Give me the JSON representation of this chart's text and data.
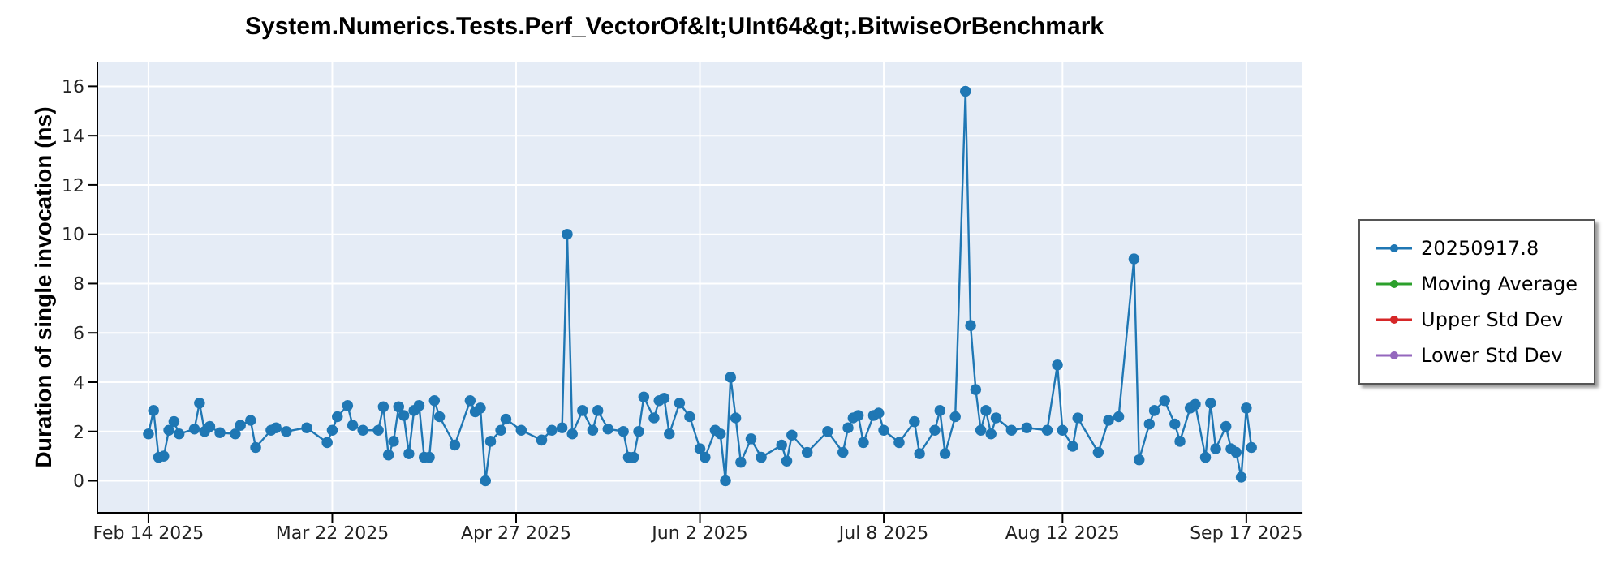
{
  "chart_data": {
    "type": "line",
    "title": "System.Numerics.Tests.Perf_VectorOf&lt;UInt64&gt;.BitwiseOrBenchmark",
    "ylabel": "Duration of single invocation (ns)",
    "x": [
      "2025-02-14",
      "2025-02-15",
      "2025-02-16",
      "2025-02-17",
      "2025-02-18",
      "2025-02-19",
      "2025-02-20",
      "2025-02-23",
      "2025-02-24",
      "2025-02-25",
      "2025-02-26",
      "2025-02-28",
      "2025-03-03",
      "2025-03-04",
      "2025-03-06",
      "2025-03-07",
      "2025-03-10",
      "2025-03-11",
      "2025-03-13",
      "2025-03-17",
      "2025-03-21",
      "2025-03-22",
      "2025-03-23",
      "2025-03-25",
      "2025-03-26",
      "2025-03-28",
      "2025-03-31",
      "2025-04-01",
      "2025-04-02",
      "2025-04-03",
      "2025-04-04",
      "2025-04-05",
      "2025-04-06",
      "2025-04-07",
      "2025-04-08",
      "2025-04-09",
      "2025-04-10",
      "2025-04-11",
      "2025-04-12",
      "2025-04-15",
      "2025-04-18",
      "2025-04-19",
      "2025-04-20",
      "2025-04-21",
      "2025-04-22",
      "2025-04-24",
      "2025-04-25",
      "2025-04-28",
      "2025-05-02",
      "2025-05-04",
      "2025-05-06",
      "2025-05-07",
      "2025-05-08",
      "2025-05-10",
      "2025-05-12",
      "2025-05-13",
      "2025-05-15",
      "2025-05-18",
      "2025-05-19",
      "2025-05-20",
      "2025-05-21",
      "2025-05-22",
      "2025-05-24",
      "2025-05-25",
      "2025-05-26",
      "2025-05-27",
      "2025-05-29",
      "2025-05-31",
      "2025-06-02",
      "2025-06-03",
      "2025-06-05",
      "2025-06-06",
      "2025-06-07",
      "2025-06-08",
      "2025-06-09",
      "2025-06-10",
      "2025-06-12",
      "2025-06-14",
      "2025-06-18",
      "2025-06-19",
      "2025-06-20",
      "2025-06-23",
      "2025-06-27",
      "2025-06-30",
      "2025-07-01",
      "2025-07-02",
      "2025-07-03",
      "2025-07-04",
      "2025-07-06",
      "2025-07-07",
      "2025-07-08",
      "2025-07-11",
      "2025-07-14",
      "2025-07-15",
      "2025-07-18",
      "2025-07-19",
      "2025-07-20",
      "2025-07-22",
      "2025-07-24",
      "2025-07-25",
      "2025-07-26",
      "2025-07-27",
      "2025-07-28",
      "2025-07-29",
      "2025-07-30",
      "2025-08-02",
      "2025-08-05",
      "2025-08-09",
      "2025-08-11",
      "2025-08-12",
      "2025-08-14",
      "2025-08-15",
      "2025-08-19",
      "2025-08-21",
      "2025-08-23",
      "2025-08-26",
      "2025-08-27",
      "2025-08-29",
      "2025-08-30",
      "2025-09-01",
      "2025-09-03",
      "2025-09-04",
      "2025-09-06",
      "2025-09-07",
      "2025-09-09",
      "2025-09-10",
      "2025-09-11",
      "2025-09-13",
      "2025-09-14",
      "2025-09-15",
      "2025-09-16",
      "2025-09-17",
      "2025-09-18"
    ],
    "series": [
      {
        "name": "20250917.8",
        "color": "#1f77b4",
        "values": [
          1.9,
          2.85,
          0.95,
          1.0,
          2.05,
          2.4,
          1.9,
          2.1,
          3.15,
          2.0,
          2.2,
          1.95,
          1.9,
          2.25,
          2.45,
          1.35,
          2.05,
          2.15,
          2.0,
          2.15,
          1.55,
          2.05,
          2.6,
          3.05,
          2.25,
          2.05,
          2.05,
          3.0,
          1.05,
          1.6,
          3.0,
          2.65,
          1.1,
          2.85,
          3.05,
          0.95,
          0.95,
          3.25,
          2.6,
          1.45,
          3.25,
          2.8,
          2.95,
          0,
          1.6,
          2.05,
          2.5,
          2.05,
          1.65,
          2.05,
          2.15,
          10.0,
          1.9,
          2.85,
          2.05,
          2.85,
          2.1,
          2.0,
          0.95,
          0.95,
          2.0,
          3.4,
          2.55,
          3.25,
          3.35,
          1.9,
          3.15,
          2.6,
          1.3,
          0.95,
          2.05,
          1.9,
          0,
          4.2,
          2.55,
          0.75,
          1.7,
          0.95,
          1.45,
          0.8,
          1.85,
          1.15,
          2.0,
          1.15,
          2.15,
          2.55,
          2.65,
          1.55,
          2.65,
          2.75,
          2.05,
          1.55,
          2.4,
          1.1,
          2.05,
          2.85,
          1.1,
          2.6,
          15.8,
          6.3,
          3.7,
          2.05,
          2.85,
          1.9,
          2.55,
          2.05,
          2.15,
          2.05,
          4.7,
          2.05,
          1.4,
          2.55,
          1.15,
          2.45,
          2.6,
          9.0,
          0.85,
          2.3,
          2.85,
          3.25,
          2.3,
          1.6,
          2.95,
          3.1,
          0.95,
          3.15,
          1.3,
          2.2,
          1.3,
          1.15,
          0.15,
          2.95,
          1.35
        ]
      },
      {
        "name": "Moving Average",
        "color": "#2ca02c",
        "values": [
          null,
          null,
          null,
          null,
          null,
          null,
          null,
          null,
          null,
          null,
          null,
          null,
          null,
          null,
          null,
          null,
          null,
          null,
          null,
          null,
          null,
          null,
          null,
          null,
          null,
          null,
          null,
          null,
          null,
          null,
          null,
          null,
          null,
          null,
          null,
          null,
          null,
          null,
          null,
          null,
          null,
          null,
          null,
          null,
          null,
          null,
          null,
          null,
          null,
          null,
          null,
          null,
          null,
          null,
          null,
          null,
          null,
          null,
          null,
          null,
          null,
          null,
          null,
          null,
          null,
          null,
          null,
          null,
          null,
          null,
          null,
          null,
          null,
          null,
          null,
          null,
          null,
          null,
          null,
          null,
          null,
          null,
          null,
          null,
          null,
          null,
          null,
          null,
          null,
          null,
          null,
          null,
          null,
          null,
          null,
          null,
          null,
          null,
          null,
          null,
          null,
          null,
          null,
          null,
          null,
          null,
          null,
          null,
          null,
          null,
          null,
          null,
          null,
          null,
          null,
          null,
          null,
          null,
          null,
          null,
          null,
          null,
          null,
          null,
          null,
          null,
          null,
          null,
          null,
          null,
          null,
          null,
          null
        ]
      },
      {
        "name": "Upper Std Dev",
        "color": "#d62728",
        "values": [
          null,
          null,
          null,
          null,
          null,
          null,
          null,
          null,
          null,
          null,
          null,
          null,
          null,
          null,
          null,
          null,
          null,
          null,
          null,
          null,
          null,
          null,
          null,
          null,
          null,
          null,
          null,
          null,
          null,
          null,
          null,
          null,
          null,
          null,
          null,
          null,
          null,
          null,
          null,
          null,
          null,
          null,
          null,
          null,
          null,
          null,
          null,
          null,
          null,
          null,
          null,
          null,
          null,
          null,
          null,
          null,
          null,
          null,
          null,
          null,
          null,
          null,
          null,
          null,
          null,
          null,
          null,
          null,
          null,
          null,
          null,
          null,
          null,
          null,
          null,
          null,
          null,
          null,
          null,
          null,
          null,
          null,
          null,
          null,
          null,
          null,
          null,
          null,
          null,
          null,
          null,
          null,
          null,
          null,
          null,
          null,
          null,
          null,
          null,
          null,
          null,
          null,
          null,
          null,
          null,
          null,
          null,
          null,
          null,
          null,
          null,
          null,
          null,
          null,
          null,
          null,
          null,
          null,
          null,
          null,
          null,
          null,
          null,
          null,
          null,
          null,
          null,
          null,
          null,
          null,
          null,
          null,
          null
        ]
      },
      {
        "name": "Lower Std Dev",
        "color": "#9467bd",
        "values": [
          null,
          null,
          null,
          null,
          null,
          null,
          null,
          null,
          null,
          null,
          null,
          null,
          null,
          null,
          null,
          null,
          null,
          null,
          null,
          null,
          null,
          null,
          null,
          null,
          null,
          null,
          null,
          null,
          null,
          null,
          null,
          null,
          null,
          null,
          null,
          null,
          null,
          null,
          null,
          null,
          null,
          null,
          null,
          null,
          null,
          null,
          null,
          null,
          null,
          null,
          null,
          null,
          null,
          null,
          null,
          null,
          null,
          null,
          null,
          null,
          null,
          null,
          null,
          null,
          null,
          null,
          null,
          null,
          null,
          null,
          null,
          null,
          null,
          null,
          null,
          null,
          null,
          null,
          null,
          null,
          null,
          null,
          null,
          null,
          null,
          null,
          null,
          null,
          null,
          null,
          null,
          null,
          null,
          null,
          null,
          null,
          null,
          null,
          null,
          null,
          null,
          null,
          null,
          null,
          null,
          null,
          null,
          null,
          null,
          null,
          null,
          null,
          null,
          null,
          null,
          null,
          null,
          null,
          null,
          null,
          null,
          null,
          null,
          null,
          null,
          null,
          null,
          null,
          null,
          null,
          null,
          null,
          null
        ]
      }
    ],
    "xlim": [
      "2025-02-04",
      "2025-09-28"
    ],
    "xticks": [
      {
        "value": "2025-02-14",
        "label": "Feb 14 2025"
      },
      {
        "value": "2025-03-22",
        "label": "Mar 22 2025"
      },
      {
        "value": "2025-04-27",
        "label": "Apr 27 2025"
      },
      {
        "value": "2025-06-02",
        "label": "Jun 2 2025"
      },
      {
        "value": "2025-07-08",
        "label": "Jul 8 2025"
      },
      {
        "value": "2025-08-12",
        "label": "Aug 12 2025"
      },
      {
        "value": "2025-09-17",
        "label": "Sep 17 2025"
      }
    ],
    "ylim": [
      -1.3,
      17
    ],
    "yticks": [
      0,
      2,
      4,
      6,
      8,
      10,
      12,
      14,
      16
    ],
    "grid": true,
    "legend": "right",
    "marker": "circle",
    "line_style": "solid"
  }
}
